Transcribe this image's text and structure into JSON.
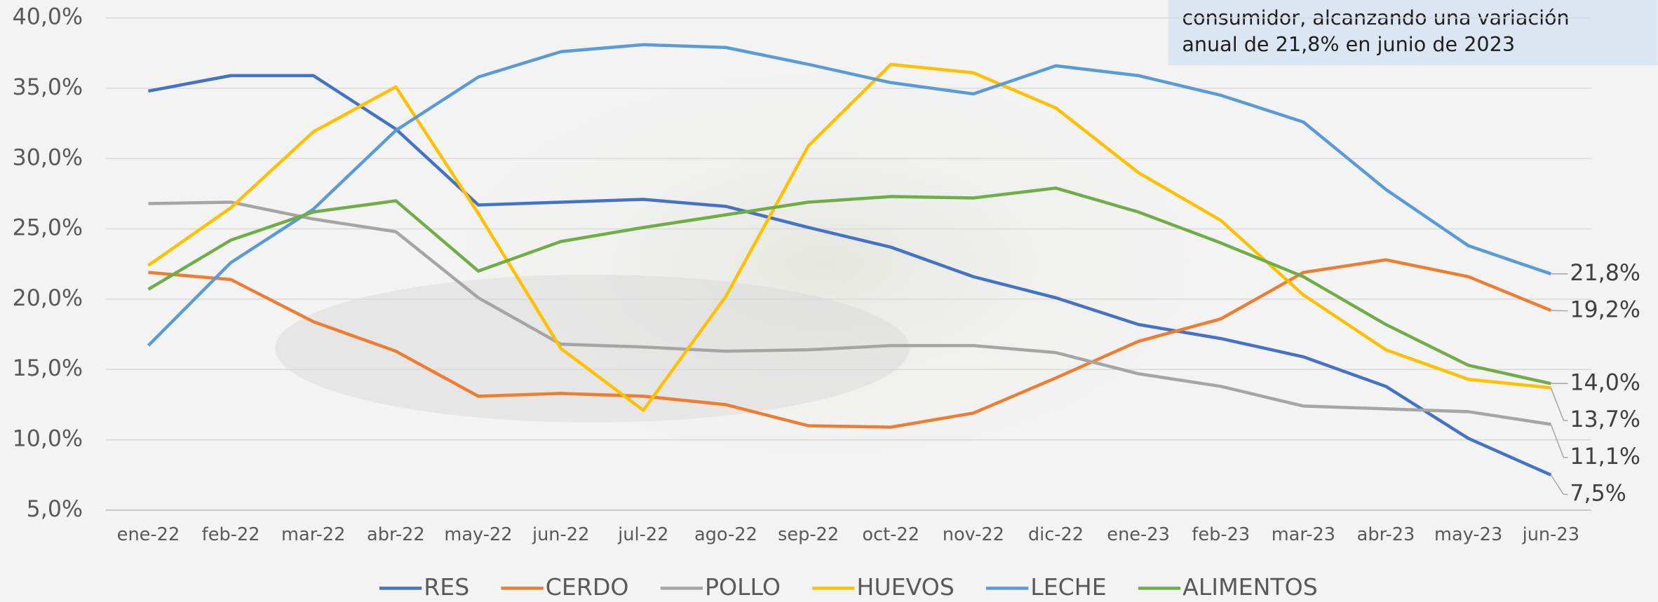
{
  "chart_data": {
    "type": "line",
    "annotation": [
      "consumidor, alcanzando una variación",
      "anual de 21,8% en junio de 2023"
    ],
    "categories": [
      "ene-22",
      "feb-22",
      "mar-22",
      "abr-22",
      "may-22",
      "jun-22",
      "jul-22",
      "ago-22",
      "sep-22",
      "oct-22",
      "nov-22",
      "dic-22",
      "ene-23",
      "feb-23",
      "mar-23",
      "abr-23",
      "may-23",
      "jun-23"
    ],
    "ylim": [
      5,
      40
    ],
    "yticks": [
      {
        "value": 5,
        "label": "5,0%"
      },
      {
        "value": 10,
        "label": "10,0%"
      },
      {
        "value": 15,
        "label": "15,0%"
      },
      {
        "value": 20,
        "label": "20,0%"
      },
      {
        "value": 25,
        "label": "25,0%"
      },
      {
        "value": 30,
        "label": "30,0%"
      },
      {
        "value": 35,
        "label": "35,0%"
      },
      {
        "value": 40,
        "label": "40,0%"
      }
    ],
    "grid": true,
    "legend": "bottom",
    "series": [
      {
        "name": "RES",
        "color": "#4472c4",
        "values": [
          34.8,
          35.9,
          35.9,
          32.1,
          26.7,
          26.9,
          27.1,
          26.6,
          25.1,
          23.7,
          21.6,
          20.1,
          18.2,
          17.2,
          15.9,
          13.8,
          10.1,
          7.5
        ],
        "value_labels": [
          null,
          null,
          null,
          null,
          null,
          null,
          null,
          null,
          null,
          null,
          null,
          null,
          null,
          null,
          null,
          null,
          null,
          "7,5%"
        ]
      },
      {
        "name": "CERDO",
        "color": "#ed7d31",
        "values": [
          21.9,
          21.4,
          18.4,
          16.3,
          13.1,
          13.3,
          13.1,
          12.5,
          11.0,
          10.9,
          11.9,
          14.4,
          17.0,
          18.6,
          21.9,
          22.8,
          21.6,
          19.2
        ],
        "value_labels": [
          null,
          null,
          null,
          null,
          null,
          null,
          null,
          null,
          null,
          null,
          null,
          null,
          null,
          null,
          null,
          null,
          null,
          "19,2%"
        ]
      },
      {
        "name": "POLLO",
        "color": "#a5a5a5",
        "values": [
          26.8,
          26.9,
          25.7,
          24.8,
          20.1,
          16.8,
          16.6,
          16.3,
          16.4,
          16.7,
          16.7,
          16.2,
          14.7,
          13.8,
          12.4,
          12.2,
          12.0,
          11.1
        ],
        "value_labels": [
          null,
          null,
          null,
          null,
          null,
          null,
          null,
          null,
          null,
          null,
          null,
          null,
          null,
          null,
          null,
          null,
          null,
          "11,1%"
        ]
      },
      {
        "name": "HUEVOS",
        "color": "#ffc000",
        "values": [
          22.4,
          26.5,
          31.9,
          35.1,
          26.1,
          16.5,
          12.1,
          20.2,
          30.9,
          36.7,
          36.1,
          33.6,
          29.0,
          25.6,
          20.3,
          16.4,
          14.3,
          13.7
        ],
        "value_labels": [
          null,
          null,
          null,
          null,
          null,
          null,
          null,
          null,
          null,
          null,
          null,
          null,
          null,
          null,
          null,
          null,
          null,
          "13,7%"
        ]
      },
      {
        "name": "LECHE",
        "color": "#5b9bd5",
        "values": [
          16.7,
          22.6,
          26.4,
          32.0,
          35.8,
          37.6,
          38.1,
          37.9,
          36.7,
          35.4,
          34.6,
          36.6,
          35.9,
          34.5,
          32.6,
          27.8,
          23.8,
          21.8
        ],
        "value_labels": [
          null,
          null,
          null,
          null,
          null,
          null,
          null,
          null,
          null,
          null,
          null,
          null,
          null,
          null,
          null,
          null,
          null,
          "21,8%"
        ]
      },
      {
        "name": "ALIMENTOS",
        "color": "#70ad47",
        "values": [
          20.7,
          24.2,
          26.2,
          27.0,
          22.0,
          24.1,
          25.1,
          26.0,
          26.9,
          27.3,
          27.2,
          27.9,
          26.2,
          24.0,
          21.6,
          18.2,
          15.3,
          14.0
        ],
        "value_labels": [
          null,
          null,
          null,
          null,
          null,
          null,
          null,
          null,
          null,
          null,
          null,
          null,
          null,
          null,
          null,
          null,
          null,
          "14,0%"
        ]
      }
    ]
  }
}
